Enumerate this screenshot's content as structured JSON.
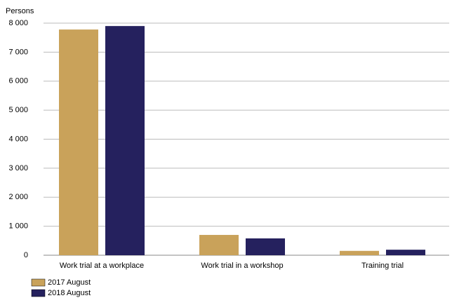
{
  "chart_data": {
    "type": "bar",
    "y_label": "Persons",
    "categories": [
      "Work trial at a workplace",
      "Work trial in a workshop",
      "Training trial"
    ],
    "series": [
      {
        "name": "2017 August",
        "color": "#c9a25a",
        "values": [
          7780,
          700,
          150
        ]
      },
      {
        "name": "2018 August",
        "color": "#25215e",
        "values": [
          7900,
          580,
          190
        ]
      }
    ],
    "ylim": [
      0,
      8000
    ],
    "yticks": [
      0,
      {
        "value": 1000,
        "label": "1 000"
      },
      {
        "value": 2000,
        "label": "2 000"
      },
      {
        "value": 3000,
        "label": "3 000"
      },
      {
        "value": 4000,
        "label": "4 000"
      },
      {
        "value": 5000,
        "label": "5 000"
      },
      {
        "value": 6000,
        "label": "6 000"
      },
      {
        "value": 7000,
        "label": "7 000"
      },
      {
        "value": 8000,
        "label": "8 000"
      }
    ],
    "grid": true,
    "legend": "bottom-left"
  }
}
